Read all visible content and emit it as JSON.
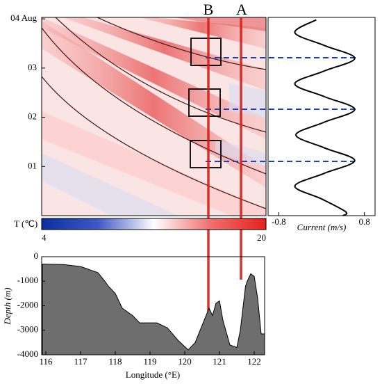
{
  "chart_data": [
    {
      "type": "heatmap",
      "ylim": [
        0,
        4.03
      ],
      "yticks": [
        {
          "value": 4,
          "label": "04 Aug"
        },
        {
          "value": 3,
          "label": "03"
        },
        {
          "value": 2,
          "label": "02"
        },
        {
          "value": 1,
          "label": "01"
        }
      ],
      "annotations": [
        "B",
        "A"
      ]
    },
    {
      "type": "line",
      "xlabel": "Current (m/s)",
      "xlim": [
        -1.0,
        1.0
      ],
      "xticks": [
        -0.8,
        0.8
      ],
      "ylim": [
        0,
        4.03
      ],
      "y": [
        0.0,
        0.08,
        0.34,
        0.6,
        0.86,
        1.12,
        1.38,
        1.64,
        1.9,
        2.16,
        2.42,
        2.68,
        2.94,
        3.2,
        3.46,
        3.72,
        3.98
      ],
      "series": [
        {
          "color": "#000000",
          "values": [
            0.4,
            0.45,
            0.0,
            -0.5,
            0.05,
            0.62,
            0.05,
            -0.48,
            0.05,
            0.62,
            0.05,
            -0.5,
            0.05,
            0.62,
            0.05,
            -0.5,
            -0.1
          ]
        }
      ]
    },
    {
      "type": "colorbar",
      "label": "T (℃)",
      "lim": [
        4,
        20
      ],
      "ticks": [
        4,
        20
      ],
      "colors": [
        "#0a2f9e",
        "#3e57c4",
        "#ffffff",
        "#f07070",
        "#e8201a"
      ]
    },
    {
      "type": "area",
      "xlabel": "Longitude (°E)",
      "ylabel": "Depth (m)",
      "color": "#6e6e6e",
      "xlim": [
        115.88,
        122.3
      ],
      "xticks": [
        116,
        117,
        118,
        119,
        120,
        121,
        122
      ],
      "ylim": [
        -4000,
        0
      ],
      "yticks": [
        0,
        -1000,
        -2000,
        -3000,
        -4000
      ],
      "x": [
        115.9,
        116.5,
        117.0,
        117.5,
        117.7,
        117.8,
        118.0,
        118.2,
        118.5,
        118.7,
        119.2,
        119.5,
        119.8,
        120.1,
        120.3,
        120.5,
        120.7,
        120.8,
        120.9,
        121.0,
        121.1,
        121.3,
        121.5,
        121.6,
        121.75,
        121.8,
        121.9,
        122.0,
        122.1,
        122.2,
        122.3
      ],
      "values": [
        -300,
        -320,
        -400,
        -650,
        -1000,
        -1200,
        -1500,
        -2100,
        -2400,
        -2700,
        -2700,
        -2900,
        -3400,
        -3800,
        -3500,
        -2800,
        -2100,
        -2400,
        -1900,
        -1800,
        -2600,
        -3600,
        -3700,
        -3000,
        -1200,
        -1000,
        -700,
        -800,
        -1700,
        -3150,
        -3150
      ]
    }
  ]
}
